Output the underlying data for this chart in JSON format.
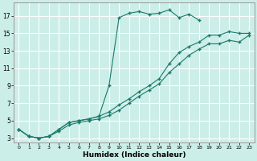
{
  "xlabel": "Humidex (Indice chaleur)",
  "bg_color": "#cceee8",
  "grid_color": "#ffffff",
  "line_color": "#1a7a6a",
  "line1_x": [
    0,
    1,
    2,
    3,
    4,
    5,
    6,
    7,
    8,
    9,
    10,
    11,
    12,
    13,
    14,
    15,
    16,
    17,
    18
  ],
  "line1_y": [
    4.0,
    3.2,
    3.0,
    3.2,
    4.0,
    4.8,
    5.0,
    5.2,
    5.5,
    9.0,
    16.8,
    17.3,
    17.5,
    17.2,
    17.3,
    17.7,
    16.8,
    17.2,
    16.5
  ],
  "line2_x": [
    0,
    1,
    2,
    3,
    4,
    5,
    6,
    7,
    8,
    9,
    10,
    11,
    12,
    13,
    14,
    15,
    16,
    17,
    18,
    19,
    20,
    21,
    22,
    23
  ],
  "line2_y": [
    4.0,
    3.2,
    3.0,
    3.2,
    4.0,
    4.8,
    5.0,
    5.2,
    5.5,
    6.0,
    6.8,
    7.5,
    8.3,
    9.0,
    9.8,
    11.5,
    12.8,
    13.5,
    14.0,
    14.8,
    14.8,
    15.2,
    15.0,
    15.0
  ],
  "line3_x": [
    0,
    1,
    2,
    3,
    4,
    5,
    6,
    7,
    8,
    9,
    10,
    11,
    12,
    13,
    14,
    15,
    16,
    17,
    18,
    19,
    20,
    21,
    22,
    23
  ],
  "line3_y": [
    4.0,
    3.2,
    3.0,
    3.2,
    3.8,
    4.5,
    4.8,
    5.0,
    5.2,
    5.6,
    6.2,
    7.0,
    7.8,
    8.5,
    9.2,
    10.5,
    11.5,
    12.5,
    13.2,
    13.8,
    13.8,
    14.2,
    14.0,
    14.8
  ],
  "ylim": [
    2.5,
    18.5
  ],
  "xlim": [
    -0.5,
    23.5
  ],
  "yticks": [
    3,
    5,
    7,
    9,
    11,
    13,
    15,
    17
  ],
  "xticks": [
    0,
    1,
    2,
    3,
    4,
    5,
    6,
    7,
    8,
    9,
    10,
    11,
    12,
    13,
    14,
    15,
    16,
    17,
    18,
    19,
    20,
    21,
    22,
    23
  ]
}
